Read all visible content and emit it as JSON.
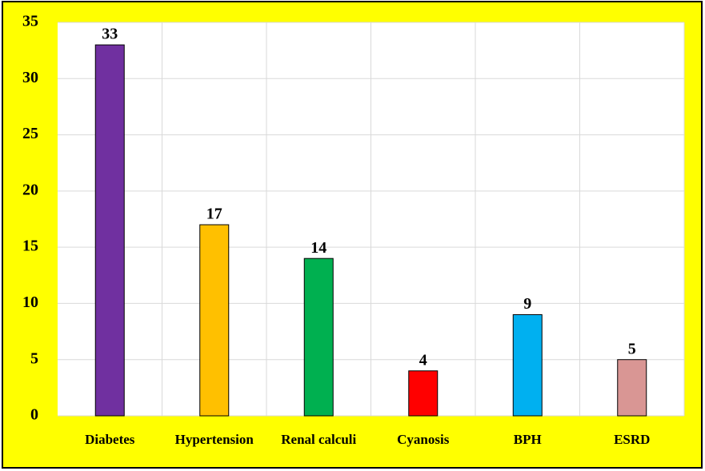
{
  "chart_data": {
    "type": "bar",
    "categories": [
      "Diabetes",
      "Hypertension",
      "Renal calculi",
      "Cyanosis",
      "BPH",
      "ESRD"
    ],
    "values": [
      33,
      17,
      14,
      4,
      9,
      5
    ],
    "colors": [
      "#7030a0",
      "#ffc000",
      "#00b050",
      "#ff0000",
      "#00b0f0",
      "#d99694"
    ],
    "ylim": [
      0,
      35
    ],
    "yticks": [
      0,
      5,
      10,
      15,
      20,
      25,
      30,
      35
    ],
    "grid": true
  }
}
